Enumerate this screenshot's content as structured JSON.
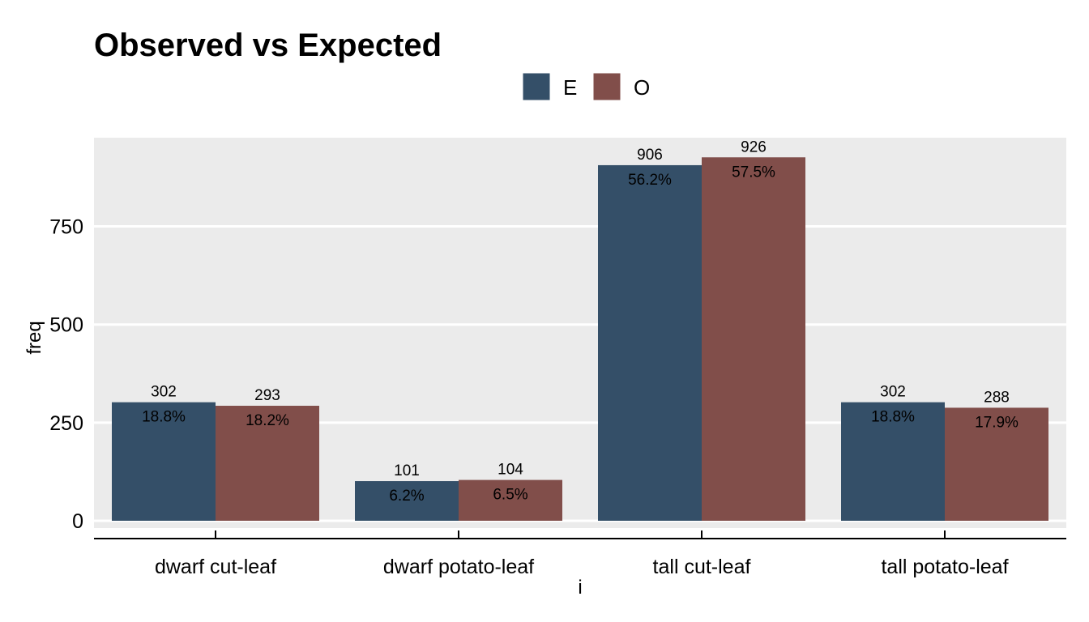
{
  "chart_data": {
    "type": "bar",
    "title": "Observed vs Expected",
    "xlabel": "i",
    "ylabel": "freq",
    "categories": [
      "dwarf cut-leaf",
      "dwarf potato-leaf",
      "tall cut-leaf",
      "tall potato-leaf"
    ],
    "series": [
      {
        "name": "E",
        "color": "#344f68",
        "values": [
          302,
          101,
          906,
          302
        ],
        "percent_labels": [
          "18.8%",
          "6.2%",
          "56.2%",
          "18.8%"
        ]
      },
      {
        "name": "O",
        "color": "#814e4a",
        "values": [
          293,
          104,
          926,
          288
        ],
        "percent_labels": [
          "18.2%",
          "6.5%",
          "57.5%",
          "17.9%"
        ]
      }
    ],
    "yticks": [
      0,
      250,
      500,
      750
    ],
    "ylim": [
      -36,
      967
    ],
    "legend_position": "top",
    "grid": true,
    "panel_background": "#ebebeb"
  }
}
